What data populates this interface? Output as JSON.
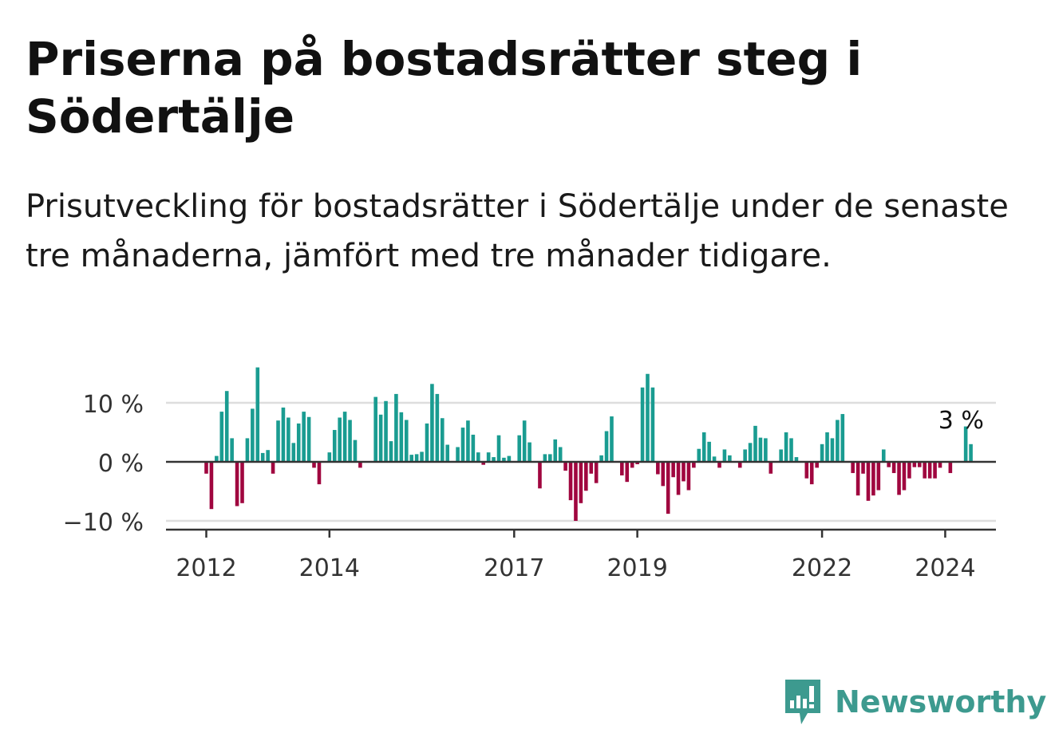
{
  "header": {
    "title": "Priserna på bostadsrätter steg i Södertälje",
    "subtitle": "Prisutveckling för bostadsrätter i Södertälje under de senaste tre månaderna, jämfört med tre månader tidigare."
  },
  "brand": {
    "name": "Newsworthy"
  },
  "colors": {
    "positive": "#1a9c91",
    "negative": "#a0063f",
    "axis": "#333333",
    "grid": "#dddddd",
    "brand": "#3d9a8f"
  },
  "chart_data": {
    "type": "bar",
    "x_start": "2012-01",
    "ylim": [
      -11,
      16
    ],
    "yticks": [
      10,
      0,
      -10
    ],
    "ytick_labels": [
      "10 %",
      "0 %",
      "−10 %"
    ],
    "xticks": [
      {
        "label": "2012",
        "index": 0
      },
      {
        "label": "2014",
        "index": 24
      },
      {
        "label": "2017",
        "index": 60
      },
      {
        "label": "2019",
        "index": 84
      },
      {
        "label": "2022",
        "index": 120
      },
      {
        "label": "2024",
        "index": 144
      }
    ],
    "annotation": {
      "text": "3 %",
      "index": 146
    },
    "values": [
      -2,
      -8,
      1,
      8.5,
      12,
      4,
      -7.5,
      -7,
      4,
      9,
      16,
      1.5,
      2,
      -2,
      7,
      9.2,
      7.5,
      3.2,
      6.5,
      8.5,
      7.6,
      -1,
      -3.8,
      0,
      1.6,
      5.4,
      7.5,
      8.5,
      7.1,
      3.7,
      -1,
      0,
      0,
      11,
      8,
      10.3,
      3.5,
      11.5,
      8.4,
      7.1,
      1.2,
      1.3,
      1.7,
      6.5,
      13.2,
      11.5,
      7.4,
      2.9,
      0,
      2.5,
      5.8,
      7,
      4.6,
      1.6,
      -0.5,
      1.6,
      0.8,
      4.5,
      0.7,
      1,
      0,
      4.5,
      7,
      3.3,
      0,
      -4.5,
      1.3,
      1.3,
      3.8,
      2.5,
      -1.5,
      -6.5,
      -10,
      -7,
      -4.9,
      -2,
      -3.6,
      1.1,
      5.2,
      7.7,
      0,
      -2.3,
      -3.4,
      -1,
      -0.4,
      12.6,
      14.9,
      12.6,
      -2.1,
      -4.1,
      -8.8,
      -2.6,
      -5.6,
      -3.3,
      -4.8,
      -1,
      2.2,
      5,
      3.4,
      0.9,
      -1,
      2.1,
      1.1,
      0,
      -1,
      2.1,
      3.2,
      6.1,
      4.1,
      4,
      -2,
      0,
      2.1,
      5,
      4,
      0.8,
      0,
      -2.8,
      -3.8,
      -1,
      3,
      5,
      4,
      7.1,
      8.1,
      0,
      -1.9,
      -5.7,
      -2,
      -6.6,
      -5.7,
      -4.8,
      2.1,
      -0.9,
      -1.9,
      -5.6,
      -4.8,
      -2.8,
      -0.9,
      -0.9,
      -2.8,
      -2.8,
      -2.8,
      -1,
      0,
      -1.9,
      0,
      0,
      6,
      3
    ]
  }
}
